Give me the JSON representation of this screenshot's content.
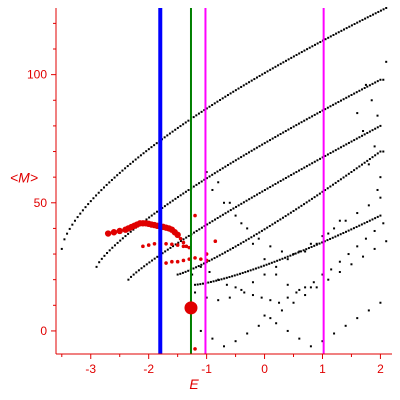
{
  "chart_data": {
    "type": "scatter",
    "xlabel": "E",
    "ylabel": "<M>",
    "xlim": [
      -3.6,
      2.2
    ],
    "ylim": [
      -9,
      126
    ],
    "x_ticks": [
      -3,
      -2,
      -1,
      0,
      1,
      2
    ],
    "y_ticks": [
      0,
      50,
      100
    ],
    "x_tick_labels": [
      "-3",
      "-2",
      "-1",
      "0",
      "1",
      "2"
    ],
    "y_tick_labels": [
      "0",
      "50",
      "100"
    ],
    "grid": false,
    "colors": {
      "axis": "#e00000",
      "black_points": "#000000",
      "red_points": "#e00000",
      "vline_blue": "#0000ff",
      "vline_green": "#008000",
      "vline_magenta": "#ff00ff"
    },
    "vertical_lines": [
      {
        "x": -1.8,
        "color": "#0000ff",
        "width": "thick"
      },
      {
        "x": -1.27,
        "color": "#008000",
        "width": "medium"
      },
      {
        "x": -1.02,
        "color": "#ff00ff",
        "width": "medium"
      },
      {
        "x": 1.02,
        "color": "#ff00ff",
        "width": "medium"
      }
    ],
    "large_marker": {
      "x": -1.27,
      "y": 9,
      "color": "#e00000"
    },
    "black_branches": [
      {
        "x_start": -3.5,
        "x_end": 2.1,
        "y_start": 32,
        "y_end": 126,
        "curve": 0.55
      },
      {
        "x_start": -2.9,
        "x_end": 2.0,
        "y_start": 25,
        "y_end": 98,
        "curve": 0.35
      },
      {
        "x_start": -2.35,
        "x_end": 2.0,
        "y_start": 20,
        "y_end": 80,
        "curve": 0.2
      },
      {
        "x_start": -1.5,
        "x_end": 2.0,
        "y_start": 22,
        "y_end": 70,
        "curve": -0.3
      },
      {
        "x_start": -1.2,
        "x_end": 2.0,
        "y_start": 18,
        "y_end": 45,
        "curve": -0.5
      }
    ],
    "black_points": [
      [
        -1.25,
        22
      ],
      [
        -1.1,
        25
      ],
      [
        -0.95,
        23
      ],
      [
        -0.8,
        20
      ],
      [
        -0.65,
        18
      ],
      [
        -0.5,
        17
      ],
      [
        -0.35,
        15
      ],
      [
        -0.2,
        14
      ],
      [
        -0.05,
        13
      ],
      [
        0.1,
        12
      ],
      [
        0.25,
        11
      ],
      [
        0.4,
        13
      ],
      [
        0.55,
        15
      ],
      [
        0.7,
        17
      ],
      [
        0.85,
        19
      ],
      [
        1.0,
        22
      ],
      [
        1.15,
        24
      ],
      [
        1.3,
        27
      ],
      [
        1.45,
        30
      ],
      [
        1.6,
        33
      ],
      [
        1.75,
        36
      ],
      [
        1.9,
        39
      ],
      [
        2.05,
        42
      ],
      [
        -1.2,
        15
      ],
      [
        -1.0,
        13
      ],
      [
        -0.8,
        12
      ],
      [
        -0.6,
        13
      ],
      [
        -0.4,
        16
      ],
      [
        -0.2,
        19
      ],
      [
        0.0,
        22
      ],
      [
        0.2,
        25
      ],
      [
        0.4,
        28
      ],
      [
        0.6,
        31
      ],
      [
        0.8,
        34
      ],
      [
        1.0,
        37
      ],
      [
        1.2,
        40
      ],
      [
        1.4,
        43
      ],
      [
        1.6,
        46
      ],
      [
        1.8,
        49
      ],
      [
        2.0,
        52
      ],
      [
        -1.1,
        0
      ],
      [
        -0.9,
        -3
      ],
      [
        -0.7,
        -6
      ],
      [
        -0.5,
        -4
      ],
      [
        -0.3,
        -1
      ],
      [
        -0.1,
        2
      ],
      [
        0.1,
        5
      ],
      [
        0.3,
        8
      ],
      [
        0.5,
        11
      ],
      [
        0.7,
        14
      ],
      [
        0.9,
        17
      ],
      [
        1.1,
        20
      ],
      [
        1.3,
        23
      ],
      [
        1.5,
        26
      ],
      [
        1.7,
        29
      ],
      [
        1.9,
        32
      ],
      [
        2.1,
        35
      ],
      [
        0.0,
        6
      ],
      [
        0.2,
        3
      ],
      [
        0.4,
        0
      ],
      [
        0.6,
        -3
      ],
      [
        0.8,
        -6
      ],
      [
        1.0,
        -4
      ],
      [
        1.2,
        -1
      ],
      [
        1.4,
        2
      ],
      [
        1.6,
        5
      ],
      [
        1.8,
        8
      ],
      [
        2.0,
        11
      ],
      [
        -0.9,
        55
      ],
      [
        -0.7,
        50
      ],
      [
        -0.5,
        45
      ],
      [
        -0.3,
        40
      ],
      [
        -0.1,
        36
      ],
      [
        0.1,
        33
      ],
      [
        0.3,
        31
      ],
      [
        0.5,
        30
      ],
      [
        0.7,
        31
      ],
      [
        0.9,
        34
      ],
      [
        1.1,
        38
      ],
      [
        1.3,
        43
      ],
      [
        -1.0,
        62
      ],
      [
        -0.8,
        58
      ],
      [
        -0.6,
        50
      ],
      [
        -0.4,
        42
      ],
      [
        -0.2,
        34
      ],
      [
        0.0,
        28
      ],
      [
        0.2,
        22
      ],
      [
        0.4,
        18
      ],
      [
        0.6,
        16
      ],
      [
        0.8,
        17
      ],
      [
        1.75,
        96
      ],
      [
        1.85,
        90
      ],
      [
        1.95,
        84
      ],
      [
        2.05,
        98
      ],
      [
        1.9,
        72
      ],
      [
        2.0,
        60
      ],
      [
        1.8,
        65
      ],
      [
        1.7,
        78
      ],
      [
        1.6,
        85
      ],
      [
        2.1,
        105
      ],
      [
        2.05,
        70
      ],
      [
        1.95,
        55
      ]
    ],
    "red_points": [
      [
        -2.7,
        38
      ],
      [
        -2.6,
        38.5
      ],
      [
        -2.5,
        39
      ],
      [
        -2.4,
        39.5
      ],
      [
        -2.35,
        40
      ],
      [
        -2.3,
        40.5
      ],
      [
        -2.25,
        41
      ],
      [
        -2.2,
        41.5
      ],
      [
        -2.15,
        42
      ],
      [
        -2.1,
        42
      ],
      [
        -2.05,
        42
      ],
      [
        -2.0,
        41.8
      ],
      [
        -1.95,
        41.5
      ],
      [
        -1.9,
        41.3
      ],
      [
        -1.85,
        41
      ],
      [
        -1.8,
        40.8
      ],
      [
        -1.75,
        40.6
      ],
      [
        -1.7,
        40.3
      ],
      [
        -1.65,
        40
      ],
      [
        -1.6,
        39.5
      ],
      [
        -1.55,
        38.5
      ],
      [
        -1.5,
        37.5
      ],
      [
        -1.45,
        36
      ],
      [
        -1.4,
        34.5
      ],
      [
        -1.35,
        33
      ],
      [
        -2.1,
        33
      ],
      [
        -2.0,
        33.5
      ],
      [
        -1.9,
        34
      ],
      [
        -1.8,
        34
      ],
      [
        -1.7,
        34
      ],
      [
        -1.6,
        33.8
      ],
      [
        -1.5,
        33.5
      ],
      [
        -1.4,
        33
      ],
      [
        -1.3,
        32.5
      ],
      [
        -1.7,
        26.5
      ],
      [
        -1.6,
        27
      ],
      [
        -1.5,
        27
      ],
      [
        -1.4,
        27.5
      ],
      [
        -1.3,
        28
      ],
      [
        -1.2,
        28.5
      ],
      [
        -1.1,
        28
      ],
      [
        -1.0,
        27.5
      ],
      [
        -1.2,
        45
      ],
      [
        -0.85,
        35
      ],
      [
        -1.2,
        -7
      ],
      [
        -1.0,
        30
      ]
    ]
  }
}
